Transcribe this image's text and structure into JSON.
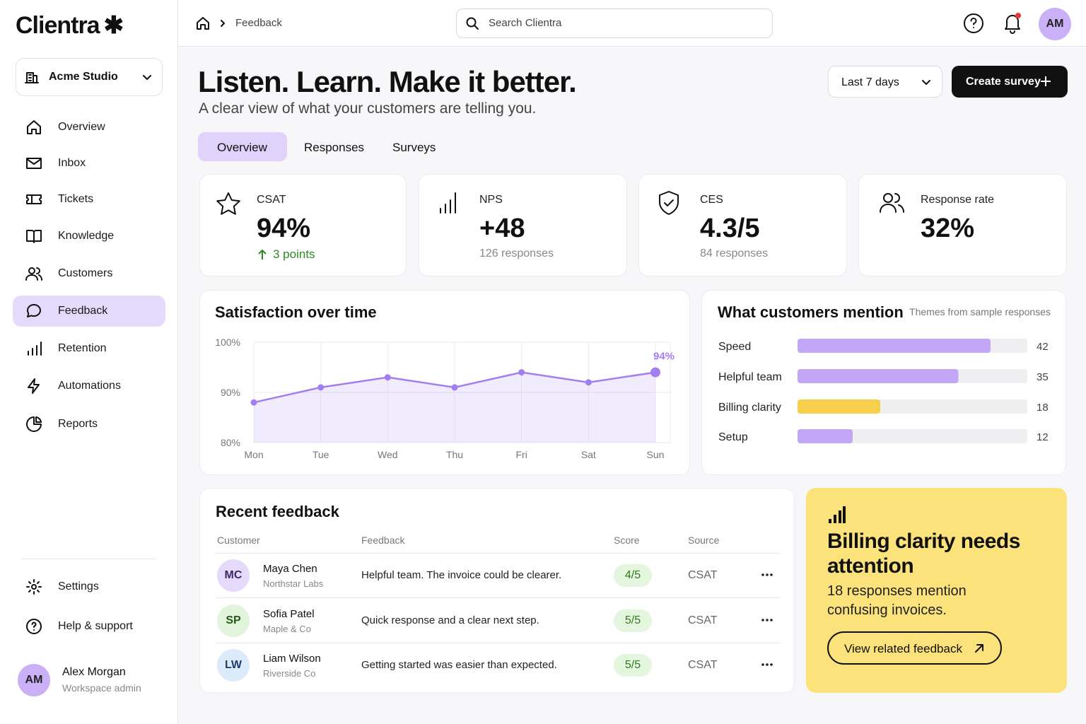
{
  "brand": "Clientra",
  "workspace": "Acme Studio",
  "nav": [
    "Overview",
    "Inbox",
    "Tickets",
    "Knowledge",
    "Customers",
    "Feedback",
    "Retention",
    "Automations",
    "Reports"
  ],
  "nav_bottom": [
    "Settings",
    "Help & support"
  ],
  "user": {
    "initials": "AM",
    "name": "Alex Morgan",
    "role": "Workspace admin"
  },
  "breadcrumb": "Feedback",
  "search_placeholder": "Search Clientra",
  "header_avatar": "AM",
  "header": {
    "title": "Listen. Learn. Make it better.",
    "subtitle": "A clear view of what your customers are telling you."
  },
  "date_range": "Last 7 days",
  "create_button": "Create survey",
  "tabs": [
    "Overview",
    "Responses",
    "Surveys"
  ],
  "kpis": [
    {
      "label": "CSAT",
      "value": "94%",
      "delta": "3 points"
    },
    {
      "label": "NPS",
      "value": "+48",
      "note": "126 responses"
    },
    {
      "label": "CES",
      "value": "4.3/5",
      "note": "84 responses"
    },
    {
      "label": "Response rate",
      "value": "32%"
    }
  ],
  "chart_data": [
    {
      "type": "line",
      "title": "Satisfaction over time",
      "categories": [
        "Mon",
        "Tue",
        "Wed",
        "Thu",
        "Fri",
        "Sat",
        "Sun"
      ],
      "values": [
        88,
        91,
        93,
        91,
        94,
        92,
        94
      ],
      "value_labels": [
        null,
        null,
        null,
        null,
        null,
        null,
        "94%"
      ],
      "color": "#a37ef0",
      "ylim": [
        80,
        100
      ],
      "yticks": [
        {
          "value": 80,
          "label": "80%"
        },
        {
          "value": 90,
          "label": "90%"
        },
        {
          "value": 100,
          "label": "100%"
        }
      ],
      "grid": true
    },
    {
      "type": "bar",
      "orientation": "horizontal",
      "title": "What customers mention",
      "subtitle": "Themes from sample responses",
      "categories": [
        "Speed",
        "Helpful team",
        "Billing clarity",
        "Setup"
      ],
      "values": [
        42,
        35,
        18,
        12
      ],
      "colors": [
        "#c3a6f6",
        "#c3a6f6",
        "#f8cf4c",
        "#c3a6f6"
      ],
      "xlim": [
        0,
        50
      ]
    }
  ],
  "recent_feedback": {
    "title": "Recent feedback",
    "columns": [
      "Customer",
      "Feedback",
      "Score",
      "Source"
    ],
    "rows": [
      {
        "initials": "MC",
        "name": "Maya Chen",
        "company": "Northstar Labs",
        "feedback": "Helpful team. The invoice could be clearer.",
        "score": "4/5",
        "source": "CSAT"
      },
      {
        "initials": "SP",
        "name": "Sofia Patel",
        "company": "Maple & Co",
        "feedback": "Quick response and a clear next step.",
        "score": "5/5",
        "source": "CSAT"
      },
      {
        "initials": "LW",
        "name": "Liam Wilson",
        "company": "Riverside Co",
        "feedback": "Getting started was easier than expected.",
        "score": "5/5",
        "source": "CSAT"
      }
    ]
  },
  "callout": {
    "title": "Billing clarity needs attention",
    "text": "18 responses mention confusing invoices.",
    "button": "View related feedback"
  }
}
